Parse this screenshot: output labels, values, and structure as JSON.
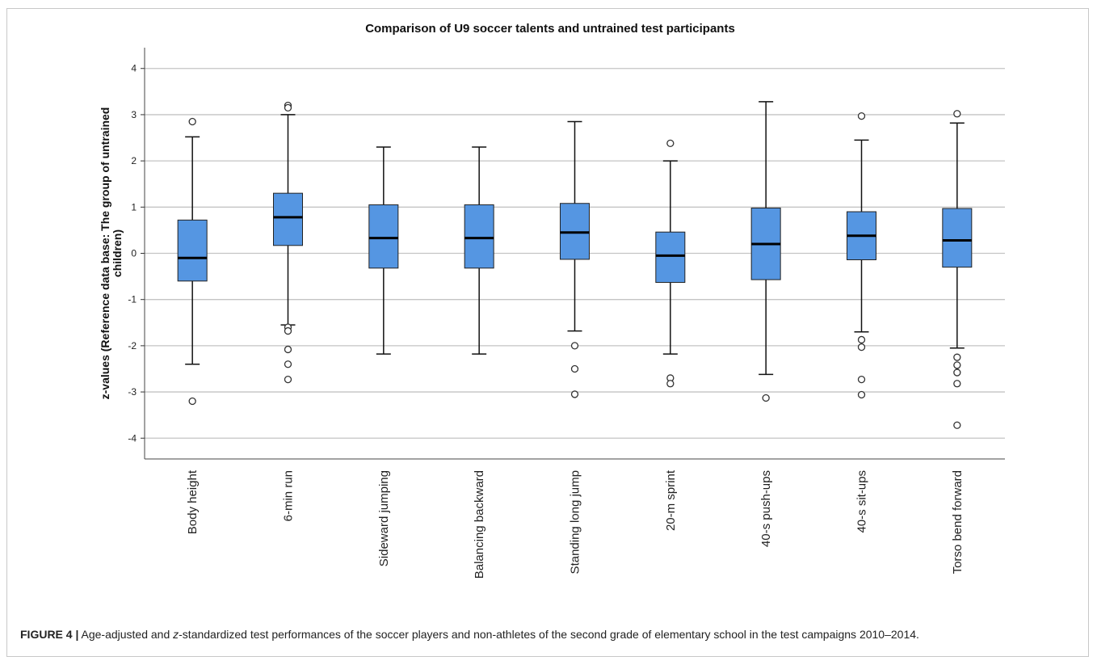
{
  "chart_data": {
    "type": "boxplot",
    "title": "Comparison of U9 soccer talents and untrained test participants",
    "ylabel": "z-values (Reference data base: The group of untrained children)",
    "xlabel": "",
    "ylim": [
      -4.45,
      4.45
    ],
    "yticks": [
      -4,
      -3,
      -2,
      -1,
      0,
      1,
      2,
      3,
      4
    ],
    "grid": true,
    "box_color": "#5596e2",
    "categories": [
      "Body height",
      "6-min run",
      "Sideward jumping",
      "Balancing backward",
      "Standing long jump",
      "20-m sprint",
      "40-s push-ups",
      "40-s sit-ups",
      "Torso bend forward"
    ],
    "boxes": [
      {
        "whisker_low": -2.4,
        "q1": -0.6,
        "median": -0.1,
        "q3": 0.72,
        "whisker_high": 2.52,
        "outliers": [
          2.85,
          -3.2
        ]
      },
      {
        "whisker_low": -1.55,
        "q1": 0.17,
        "median": 0.78,
        "q3": 1.3,
        "whisker_high": 3.0,
        "outliers": [
          3.2,
          3.15,
          -1.6,
          -1.68,
          -2.08,
          -2.4,
          -2.73
        ]
      },
      {
        "whisker_low": -2.18,
        "q1": -0.32,
        "median": 0.33,
        "q3": 1.05,
        "whisker_high": 2.3,
        "outliers": []
      },
      {
        "whisker_low": -2.18,
        "q1": -0.32,
        "median": 0.33,
        "q3": 1.05,
        "whisker_high": 2.3,
        "outliers": []
      },
      {
        "whisker_low": -1.68,
        "q1": -0.13,
        "median": 0.45,
        "q3": 1.08,
        "whisker_high": 2.85,
        "outliers": [
          -2.0,
          -2.5,
          -3.05
        ]
      },
      {
        "whisker_low": -2.18,
        "q1": -0.63,
        "median": -0.05,
        "q3": 0.46,
        "whisker_high": 2.0,
        "outliers": [
          2.38,
          -2.7,
          -2.82
        ]
      },
      {
        "whisker_low": -2.62,
        "q1": -0.57,
        "median": 0.2,
        "q3": 0.98,
        "whisker_high": 3.28,
        "outliers": [
          -3.13
        ]
      },
      {
        "whisker_low": -1.7,
        "q1": -0.14,
        "median": 0.38,
        "q3": 0.9,
        "whisker_high": 2.45,
        "outliers": [
          2.97,
          -1.87,
          -2.03,
          -2.73,
          -3.06
        ]
      },
      {
        "whisker_low": -2.05,
        "q1": -0.3,
        "median": 0.28,
        "q3": 0.97,
        "whisker_high": 2.82,
        "outliers": [
          3.02,
          -2.25,
          -2.42,
          -2.58,
          -2.82,
          -3.72
        ]
      }
    ]
  },
  "caption": {
    "label": "FIGURE 4 |",
    "text_before": " Age-adjusted and ",
    "text_italic": "z",
    "text_after": "-standardized test performances of the soccer players and non-athletes of the second grade of elementary school in the test campaigns 2010–2014."
  }
}
